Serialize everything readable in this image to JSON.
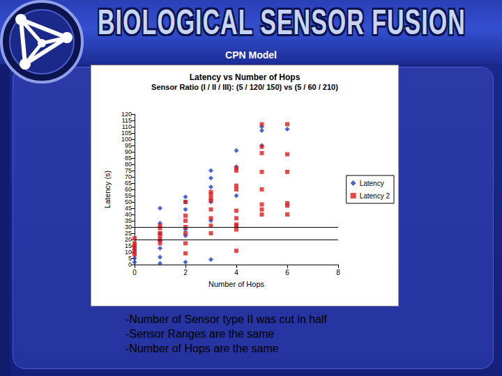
{
  "slide": {
    "header": "BIOLOGICAL SENSOR FUSION",
    "title": "CPN Model",
    "bullets": [
      "-Number of Sensor type II was cut in half",
      "-Sensor Ranges are the same",
      "-Number of Hops are the same"
    ]
  },
  "chart_data": {
    "type": "scatter",
    "title": "Latency vs Number of Hops",
    "subtitle": "Sensor Ratio (I / II / III): (5 / 120/ 150) vs (5 / 60 / 210)",
    "x_label": "Number of Hops",
    "y_label": "Latency (s)",
    "xlim": [
      0,
      8
    ],
    "xticks": [
      0,
      2,
      4,
      6,
      8
    ],
    "ylim": [
      0,
      120
    ],
    "yticks": [
      0,
      5,
      10,
      15,
      20,
      25,
      30,
      35,
      40,
      45,
      50,
      55,
      60,
      65,
      70,
      75,
      80,
      85,
      90,
      95,
      100,
      105,
      110,
      115,
      120
    ],
    "grid": false,
    "legend": "right",
    "reference_lines": [
      20,
      30
    ],
    "series": [
      {
        "name": "Latency",
        "color": "#1c3fc4",
        "marker": "diamond",
        "x": [
          0,
          0,
          0,
          1,
          1,
          1,
          1,
          1,
          1,
          1,
          2,
          2,
          2,
          2,
          2,
          2,
          3,
          3,
          3,
          3,
          3,
          3,
          4,
          4,
          4,
          5,
          5,
          5,
          6
        ],
        "values": [
          2,
          5,
          12,
          45,
          33,
          25,
          19,
          13,
          6,
          1,
          54,
          50,
          44,
          28,
          23,
          2,
          75,
          69,
          62,
          50,
          35,
          4,
          91,
          78,
          55,
          110,
          107,
          95,
          108
        ]
      },
      {
        "name": "Latency 2",
        "color": "#e31a1c",
        "marker": "square",
        "x": [
          0,
          0,
          0,
          0,
          0,
          0,
          1,
          1,
          1,
          1,
          1,
          1,
          2,
          2,
          2,
          2,
          2,
          2,
          2,
          3,
          3,
          3,
          3,
          3,
          3,
          3,
          3,
          4,
          4,
          4,
          4,
          4,
          4,
          4,
          4,
          4,
          4,
          5,
          5,
          5,
          5,
          5,
          5,
          5,
          5,
          6,
          6,
          6,
          6,
          6,
          6
        ],
        "values": [
          21,
          17,
          15,
          13,
          10,
          8,
          31,
          29,
          25,
          23,
          20,
          17,
          50,
          39,
          35,
          30,
          25,
          17,
          9,
          58,
          56,
          53,
          51,
          44,
          37,
          31,
          25,
          77,
          75,
          63,
          60,
          43,
          37,
          32,
          31,
          28,
          11,
          112,
          94,
          89,
          74,
          60,
          48,
          44,
          40,
          112,
          88,
          74,
          49,
          47,
          40
        ]
      }
    ]
  }
}
